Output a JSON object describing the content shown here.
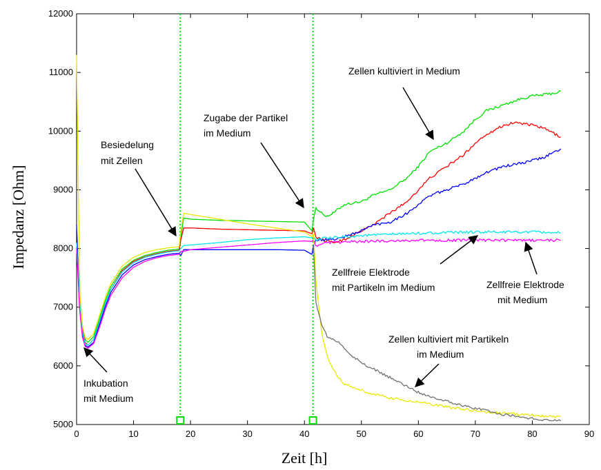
{
  "chart_data": {
    "type": "line",
    "xlabel": "Zeit [h]",
    "ylabel": "Impedanz [Ohm]",
    "xlim": [
      0,
      90
    ],
    "ylim": [
      5000,
      12000
    ],
    "xticks": [
      0,
      10,
      20,
      30,
      40,
      50,
      60,
      70,
      80,
      90
    ],
    "yticks": [
      5000,
      6000,
      7000,
      8000,
      9000,
      10000,
      11000,
      12000
    ],
    "grid": false,
    "legend": "none",
    "vlines": [
      {
        "x": 18.2,
        "color": "#00e000",
        "style": "dotted"
      },
      {
        "x": 41.5,
        "color": "#00e000",
        "style": "dotted"
      }
    ],
    "series": [
      {
        "color": "#00e000",
        "x": [
          0,
          0.5,
          1,
          1.5,
          2,
          3,
          4,
          5,
          6,
          8,
          10,
          12,
          14,
          16,
          18,
          18.3,
          18.8,
          20,
          25,
          30,
          35,
          40,
          41.3,
          41.6,
          42,
          43,
          44,
          45,
          47,
          50,
          52,
          55,
          58,
          60,
          62,
          65,
          68,
          70,
          72,
          75,
          78,
          80,
          82,
          84,
          85
        ],
        "y": [
          8100,
          7300,
          6700,
          6450,
          6400,
          6500,
          6800,
          7100,
          7350,
          7650,
          7800,
          7880,
          7930,
          7970,
          7990,
          8200,
          8520,
          8500,
          8480,
          8470,
          8460,
          8450,
          8300,
          8500,
          8700,
          8600,
          8550,
          8600,
          8750,
          8800,
          8900,
          9000,
          9200,
          9400,
          9650,
          9800,
          10000,
          10200,
          10350,
          10450,
          10550,
          10600,
          10620,
          10650,
          10680
        ]
      },
      {
        "color": "#ff0000",
        "x": [
          0,
          0.5,
          1,
          1.5,
          2,
          3,
          4,
          5,
          6,
          8,
          10,
          12,
          14,
          16,
          18,
          18.3,
          18.8,
          20,
          25,
          30,
          35,
          40,
          41.3,
          41.6,
          42,
          43,
          45,
          47,
          50,
          52,
          55,
          58,
          60,
          62,
          65,
          68,
          70,
          72,
          75,
          77,
          80,
          82,
          84,
          85
        ],
        "y": [
          8000,
          7200,
          6650,
          6400,
          6350,
          6450,
          6750,
          7050,
          7300,
          7620,
          7780,
          7860,
          7910,
          7950,
          7970,
          8150,
          8350,
          8350,
          8330,
          8320,
          8310,
          8300,
          8250,
          8350,
          8200,
          8150,
          8100,
          8150,
          8300,
          8400,
          8600,
          8800,
          9000,
          9200,
          9400,
          9600,
          9800,
          9950,
          10100,
          10150,
          10100,
          10050,
          9950,
          9900
        ]
      },
      {
        "color": "#0000ff",
        "x": [
          0,
          0.5,
          1,
          1.5,
          2,
          3,
          4,
          5,
          6,
          8,
          10,
          12,
          14,
          16,
          18,
          18.3,
          18.8,
          20,
          25,
          30,
          35,
          40,
          41.3,
          41.6,
          42,
          43,
          45,
          47,
          50,
          52,
          55,
          58,
          60,
          62,
          65,
          68,
          70,
          72,
          75,
          78,
          80,
          82,
          84,
          85
        ],
        "y": [
          8400,
          7100,
          6550,
          6350,
          6320,
          6400,
          6700,
          7000,
          7250,
          7550,
          7720,
          7810,
          7860,
          7900,
          7920,
          7880,
          7980,
          7980,
          7980,
          7980,
          7980,
          7970,
          7900,
          8050,
          8150,
          8150,
          8150,
          8200,
          8300,
          8400,
          8450,
          8600,
          8750,
          8900,
          9000,
          9100,
          9200,
          9300,
          9400,
          9450,
          9500,
          9550,
          9650,
          9700
        ]
      },
      {
        "color": "#00e5ee",
        "x": [
          0,
          0.5,
          1,
          1.5,
          2,
          3,
          4,
          5,
          6,
          8,
          10,
          12,
          14,
          16,
          18,
          18.3,
          18.8,
          20,
          25,
          30,
          35,
          40,
          41.3,
          41.6,
          42,
          43,
          45,
          47,
          50,
          55,
          60,
          65,
          70,
          75,
          80,
          85
        ],
        "y": [
          8100,
          7150,
          6600,
          6380,
          6350,
          6450,
          6750,
          7050,
          7300,
          7600,
          7760,
          7850,
          7900,
          7940,
          7960,
          8000,
          8050,
          8060,
          8100,
          8150,
          8180,
          8200,
          8180,
          8200,
          8150,
          8170,
          8180,
          8200,
          8220,
          8240,
          8260,
          8270,
          8280,
          8280,
          8280,
          8270
        ]
      },
      {
        "color": "#ff00ff",
        "x": [
          0,
          0.5,
          1,
          1.5,
          2,
          3,
          4,
          5,
          6,
          8,
          10,
          12,
          14,
          16,
          18,
          18.3,
          18.8,
          20,
          25,
          30,
          35,
          40,
          41.3,
          41.6,
          42,
          43,
          45,
          47,
          50,
          55,
          60,
          65,
          70,
          75,
          80,
          85
        ],
        "y": [
          8000,
          7000,
          6500,
          6330,
          6300,
          6380,
          6650,
          6950,
          7200,
          7500,
          7680,
          7780,
          7840,
          7880,
          7900,
          7950,
          7950,
          7980,
          8020,
          8060,
          8100,
          8130,
          8120,
          8150,
          8050,
          8080,
          8100,
          8110,
          8120,
          8130,
          8140,
          8140,
          8140,
          8140,
          8140,
          8140
        ]
      },
      {
        "color": "#e8e800",
        "x": [
          0,
          0.3,
          0.6,
          1,
          1.5,
          2,
          3,
          4,
          5,
          6,
          8,
          10,
          12,
          14,
          16,
          18,
          18.3,
          18.8,
          20,
          25,
          30,
          35,
          40,
          41.3,
          41.6,
          42,
          42.5,
          43,
          43.5,
          44,
          45,
          46,
          47,
          48,
          50,
          52,
          55,
          60,
          65,
          70,
          75,
          80,
          85
        ],
        "y": [
          11300,
          9000,
          7200,
          6700,
          6480,
          6450,
          6550,
          6850,
          7150,
          7400,
          7700,
          7850,
          7930,
          7980,
          8010,
          8030,
          8300,
          8600,
          8580,
          8500,
          8420,
          8350,
          8280,
          8200,
          8250,
          7500,
          7000,
          6600,
          6350,
          6150,
          5950,
          5800,
          5700,
          5650,
          5580,
          5520,
          5450,
          5380,
          5300,
          5230,
          5190,
          5160,
          5130
        ]
      },
      {
        "color": "#707070",
        "x": [
          41.6,
          42,
          42.5,
          43,
          44,
          45,
          46,
          47,
          48,
          50,
          52,
          55,
          58,
          60,
          62,
          65,
          68,
          70,
          72,
          73,
          75,
          78,
          80,
          82,
          84,
          85
        ],
        "y": [
          8000,
          7100,
          6900,
          6700,
          6500,
          6450,
          6400,
          6300,
          6200,
          6050,
          5950,
          5800,
          5650,
          5550,
          5480,
          5400,
          5320,
          5270,
          5250,
          5200,
          5170,
          5130,
          5100,
          5080,
          5070,
          5060
        ]
      }
    ],
    "annotations": [
      {
        "lines": [
          "Inkubation",
          "mit Medium"
        ]
      },
      {
        "lines": [
          "Besiedelung",
          "mit Zellen"
        ]
      },
      {
        "lines": [
          "Zugabe der Partikel",
          "im Medium"
        ]
      },
      {
        "lines": [
          "Zellen kultiviert in Medium"
        ]
      },
      {
        "lines": [
          "Zellfreie Elektrode",
          "mit Partikeln im Medium"
        ]
      },
      {
        "lines": [
          "Zellfreie Elektrode",
          "mit Medium"
        ]
      },
      {
        "lines": [
          "Zellen kultiviert mit Partikeln",
          "im Medium"
        ]
      }
    ]
  }
}
